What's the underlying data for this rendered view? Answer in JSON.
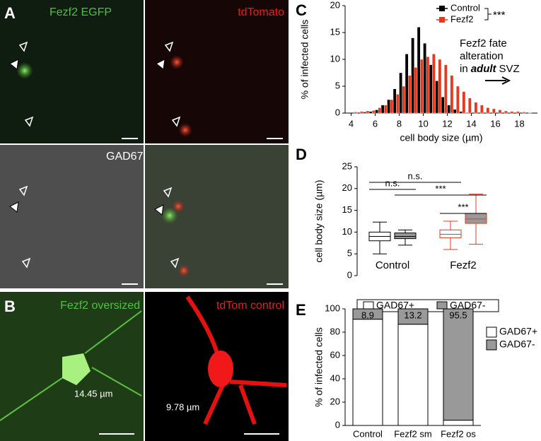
{
  "figure": {
    "panel_letters": [
      "A",
      "B",
      "C",
      "D",
      "E"
    ],
    "image_labels": [
      "Fezf2 EGFP",
      "tdTomato",
      "GAD67",
      "Fezf2 oversized",
      "tdTom control"
    ],
    "measurements": [
      "14.45 µm",
      "9.78 µm"
    ]
  },
  "chart_data": [
    {
      "type": "histogram",
      "xlabel": "cell body size (µm)",
      "ylabel": "% of infected cells",
      "bins": [
        4,
        4.5,
        5,
        5.5,
        6,
        6.5,
        7,
        7.5,
        8,
        8.5,
        9,
        9.5,
        10,
        10.5,
        11,
        11.5,
        12,
        12.5,
        13,
        13.5,
        14,
        14.5,
        15,
        15.5,
        16,
        16.5,
        17,
        17.5,
        18,
        18.5,
        19
      ],
      "series": [
        {
          "name": "Control",
          "color": "#000000",
          "values": [
            0,
            0,
            0.2,
            0.3,
            0.6,
            1.5,
            2.5,
            4.5,
            7.5,
            11,
            14,
            16,
            13,
            9,
            6,
            3,
            1.5,
            0.7,
            0.3,
            0.1,
            0,
            0,
            0,
            0,
            0,
            0,
            0,
            0,
            0,
            0
          ]
        },
        {
          "name": "Fezf2",
          "color": "#e8391d",
          "values": [
            0.2,
            0.3,
            0.4,
            0.5,
            1,
            1.5,
            2.5,
            3.5,
            5,
            7,
            8.5,
            10,
            10.5,
            11,
            10,
            9,
            7,
            5,
            4,
            2.8,
            2,
            1.5,
            1,
            0.8,
            0.6,
            0.4,
            0.3,
            0.3,
            0.2,
            0.1
          ]
        }
      ],
      "xlim": [
        3.5,
        19.5
      ],
      "xticks": [
        4,
        6,
        8,
        10,
        12,
        14,
        16,
        18
      ],
      "ylim": [
        0,
        20
      ],
      "yticks": [
        0,
        5,
        10,
        15,
        20
      ],
      "annotations": [
        "***",
        "Fezf2 fate",
        "alteration",
        "in",
        "adult",
        "SVZ"
      ]
    },
    {
      "type": "box",
      "ylabel": "cell body size (µm)",
      "categories": [
        "Control",
        "Fezf2"
      ],
      "category_colors": [
        "#000000",
        "#e8391d"
      ],
      "series": [
        {
          "name": "GAD67+",
          "color": "#ffffff",
          "min": [
            5,
            6
          ],
          "q1": [
            8,
            8.7
          ],
          "median": [
            9,
            9.5
          ],
          "q3": [
            10,
            10.5
          ],
          "max": [
            12.3,
            12.5
          ]
        },
        {
          "name": "GAD67-",
          "color": "#999999",
          "min": [
            7,
            7.2
          ],
          "q1": [
            8.5,
            12
          ],
          "median": [
            9,
            13
          ],
          "q3": [
            9.8,
            14.3
          ],
          "max": [
            10.5,
            18.7
          ]
        }
      ],
      "ylim": [
        0,
        25
      ],
      "yticks": [
        0,
        5,
        10,
        15,
        20,
        25
      ],
      "annotations": [
        "n.s.",
        "n.s.",
        "***",
        "***"
      ]
    },
    {
      "type": "stacked_bar",
      "ylabel": "% of infected cells",
      "categories": [
        "Control",
        "Fezf2 sm",
        "Fezf2 os"
      ],
      "series": [
        {
          "name": "GAD67+",
          "color": "#ffffff",
          "values": [
            91.1,
            86.8,
            4.5
          ]
        },
        {
          "name": "GAD67-",
          "color": "#999999",
          "values": [
            8.9,
            13.2,
            95.5
          ]
        }
      ],
      "ylim": [
        0,
        100
      ],
      "yticks": [
        0,
        20,
        40,
        60,
        80,
        100
      ]
    }
  ]
}
